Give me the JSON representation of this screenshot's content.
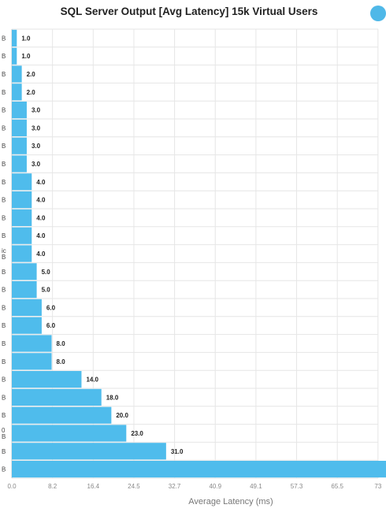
{
  "colors": {
    "bar": "#4fbcec",
    "grid": "#e6e6e6",
    "accent_icon": "#4fb8e8"
  },
  "header": {
    "icon": "refresh-icon"
  },
  "chart_data": {
    "type": "bar",
    "orientation": "horizontal",
    "title": "SQL Server Output [Avg Latency] 15k Virtual Users",
    "xlabel": "Average Latency (ms)",
    "ylabel": "",
    "xlim": [
      0,
      73.6
    ],
    "xticks": [
      "0.0",
      "8.2",
      "16.4",
      "24.5",
      "32.7",
      "40.9",
      "49.1",
      "57.3",
      "65.5",
      "73"
    ],
    "grid": true,
    "categories": [
      [
        "B"
      ],
      [
        "B"
      ],
      [
        "B"
      ],
      [
        "B"
      ],
      [
        "B"
      ],
      [
        "B"
      ],
      [
        "B"
      ],
      [
        "B"
      ],
      [
        "B"
      ],
      [
        "B"
      ],
      [
        "B"
      ],
      [
        "B"
      ],
      [
        "ic",
        "B"
      ],
      [
        "B"
      ],
      [
        "B"
      ],
      [
        "B"
      ],
      [
        "B"
      ],
      [
        "B"
      ],
      [
        "B"
      ],
      [
        "B"
      ],
      [
        "B"
      ],
      [
        "B"
      ],
      [
        "0",
        "B"
      ],
      [
        "B"
      ],
      [
        "B"
      ]
    ],
    "values": [
      1.0,
      1.0,
      2.0,
      2.0,
      3.0,
      3.0,
      3.0,
      3.0,
      4.0,
      4.0,
      4.0,
      4.0,
      4.0,
      5.0,
      5.0,
      6.0,
      6.0,
      8.0,
      8.0,
      14.0,
      18.0,
      20.0,
      23.0,
      31.0,
      76.0
    ],
    "data_labels": [
      "1.0",
      "1.0",
      "2.0",
      "2.0",
      "3.0",
      "3.0",
      "3.0",
      "3.0",
      "4.0",
      "4.0",
      "4.0",
      "4.0",
      "4.0",
      "5.0",
      "5.0",
      "6.0",
      "6.0",
      "8.0",
      "8.0",
      "14.0",
      "18.0",
      "20.0",
      "23.0",
      "31.0",
      ""
    ]
  }
}
